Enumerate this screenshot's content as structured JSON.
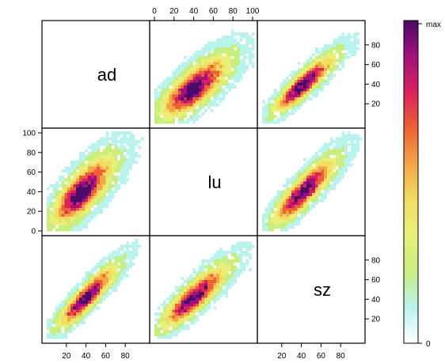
{
  "chart_data": {
    "type": "heatmap",
    "variables": [
      "ad",
      "lu",
      "sz"
    ],
    "ranges": {
      "ad": [
        0,
        100
      ],
      "lu": [
        0,
        100
      ],
      "sz": [
        0,
        100
      ]
    },
    "ticks": {
      "ad": [
        "20",
        "40",
        "60",
        "80"
      ],
      "lu": [
        "0",
        "20",
        "40",
        "60",
        "80",
        "100"
      ],
      "sz": [
        "20",
        "40",
        "60",
        "80"
      ]
    },
    "colorbar": {
      "min_label": "0",
      "max_label": "max",
      "colors": [
        "#ffffff",
        "#b9f3ee",
        "#c8ee7e",
        "#e8f07a",
        "#f2dc62",
        "#f3a646",
        "#ee6034",
        "#d9235a",
        "#a3107d",
        "#4a0a67"
      ]
    },
    "panels": [
      {
        "row": 0,
        "col": 1,
        "x": "lu",
        "y": "ad",
        "center": [
          38,
          34
        ],
        "spread": [
          20,
          18
        ],
        "rho": 0.72
      },
      {
        "row": 0,
        "col": 2,
        "x": "sz",
        "y": "ad",
        "center": [
          40,
          38
        ],
        "spread": [
          18,
          17
        ],
        "rho": 0.88
      },
      {
        "row": 1,
        "col": 0,
        "x": "ad",
        "y": "lu",
        "center": [
          34,
          38
        ],
        "spread": [
          18,
          20
        ],
        "rho": 0.72
      },
      {
        "row": 1,
        "col": 2,
        "x": "sz",
        "y": "lu",
        "center": [
          40,
          38
        ],
        "spread": [
          18,
          19
        ],
        "rho": 0.84
      },
      {
        "row": 2,
        "col": 0,
        "x": "ad",
        "y": "sz",
        "center": [
          38,
          40
        ],
        "spread": [
          17,
          18
        ],
        "rho": 0.88
      },
      {
        "row": 2,
        "col": 1,
        "x": "lu",
        "y": "sz",
        "center": [
          38,
          40
        ],
        "spread": [
          19,
          18
        ],
        "rho": 0.84
      }
    ]
  }
}
